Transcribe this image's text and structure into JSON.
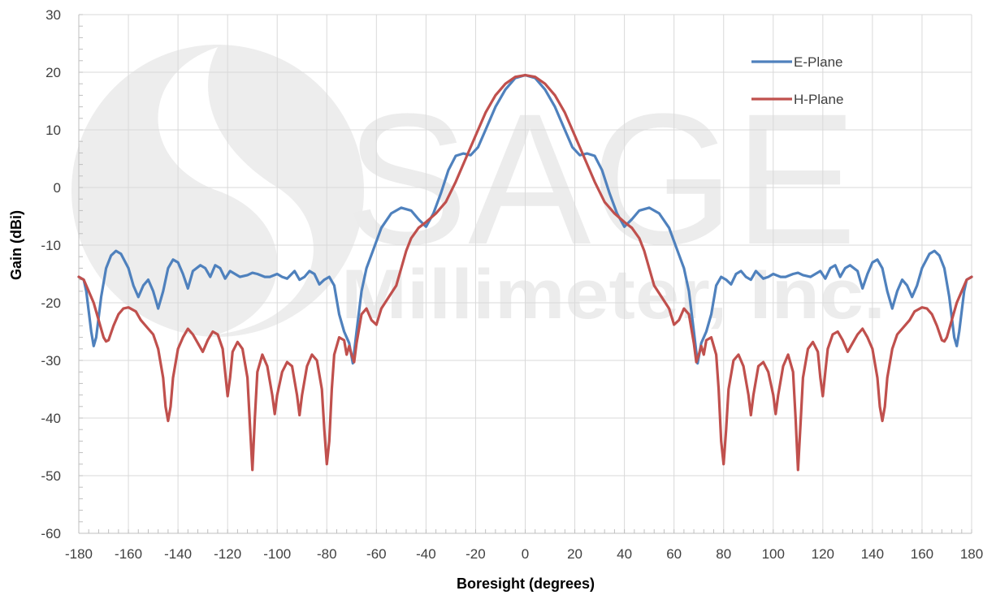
{
  "chart_data": {
    "type": "line",
    "title": "",
    "xlabel": "Boresight (degrees)",
    "ylabel": "Gain (dBi)",
    "xlim": [
      -180,
      180
    ],
    "ylim": [
      -60,
      30
    ],
    "xticks": [
      -180,
      -160,
      -140,
      -120,
      -100,
      -80,
      -60,
      -40,
      -20,
      0,
      20,
      40,
      60,
      80,
      100,
      120,
      140,
      160,
      180
    ],
    "yticks": [
      -60,
      -50,
      -40,
      -30,
      -20,
      -10,
      0,
      10,
      20,
      30
    ],
    "grid": true,
    "legend_position": "top-right",
    "watermark": {
      "brand": "SAGE",
      "company": "Millimeter, Inc."
    },
    "series": [
      {
        "name": "E-Plane",
        "color": "#4f81bd",
        "points": [
          [
            0,
            19.5
          ],
          [
            4,
            19
          ],
          [
            8,
            17
          ],
          [
            12,
            14
          ],
          [
            16,
            10
          ],
          [
            19,
            7
          ],
          [
            22,
            5.6
          ],
          [
            25,
            5.9
          ],
          [
            28,
            5.5
          ],
          [
            31,
            3
          ],
          [
            34,
            -1
          ],
          [
            37,
            -4.5
          ],
          [
            40,
            -6.8
          ],
          [
            43,
            -5.5
          ],
          [
            46,
            -4
          ],
          [
            50,
            -3.5
          ],
          [
            54,
            -4.5
          ],
          [
            58,
            -7
          ],
          [
            61,
            -10.5
          ],
          [
            64,
            -14
          ],
          [
            66,
            -18
          ],
          [
            68,
            -25
          ],
          [
            69.5,
            -30.5
          ],
          [
            71,
            -27
          ],
          [
            73,
            -25
          ],
          [
            75,
            -22
          ],
          [
            77,
            -17
          ],
          [
            79,
            -15.5
          ],
          [
            81,
            -16
          ],
          [
            83,
            -16.8
          ],
          [
            85,
            -15
          ],
          [
            87,
            -14.5
          ],
          [
            89,
            -15.5
          ],
          [
            91,
            -16
          ],
          [
            93,
            -14.5
          ],
          [
            96,
            -15.8
          ],
          [
            98,
            -15.5
          ],
          [
            100,
            -15
          ],
          [
            103,
            -15.5
          ],
          [
            105,
            -15.5
          ],
          [
            108,
            -15
          ],
          [
            110,
            -14.8
          ],
          [
            112,
            -15.2
          ],
          [
            115,
            -15.5
          ],
          [
            117,
            -15
          ],
          [
            119,
            -14.5
          ],
          [
            121,
            -15.8
          ],
          [
            123,
            -14
          ],
          [
            125,
            -13.5
          ],
          [
            127,
            -15.5
          ],
          [
            129,
            -14
          ],
          [
            131,
            -13.5
          ],
          [
            134,
            -14.5
          ],
          [
            136,
            -17.5
          ],
          [
            138,
            -15
          ],
          [
            140,
            -13
          ],
          [
            142,
            -12.5
          ],
          [
            144,
            -14
          ],
          [
            146,
            -18
          ],
          [
            148,
            -21
          ],
          [
            150,
            -18
          ],
          [
            152,
            -16
          ],
          [
            154,
            -17
          ],
          [
            156,
            -19
          ],
          [
            158,
            -17
          ],
          [
            160,
            -14
          ],
          [
            163,
            -11.5
          ],
          [
            165,
            -11
          ],
          [
            167,
            -11.8
          ],
          [
            169,
            -14
          ],
          [
            171,
            -19
          ],
          [
            173,
            -26
          ],
          [
            174,
            -27.5
          ],
          [
            175,
            -25
          ],
          [
            177,
            -18
          ],
          [
            178,
            -16
          ],
          [
            180,
            -15.5
          ]
        ]
      },
      {
        "name": "H-Plane",
        "color": "#c0504d",
        "points": [
          [
            0,
            19.5
          ],
          [
            4,
            19.2
          ],
          [
            8,
            18
          ],
          [
            12,
            16
          ],
          [
            16,
            13
          ],
          [
            20,
            9
          ],
          [
            24,
            5
          ],
          [
            28,
            1
          ],
          [
            32,
            -2.5
          ],
          [
            36,
            -4.5
          ],
          [
            40,
            -6
          ],
          [
            43,
            -7
          ],
          [
            46,
            -8.8
          ],
          [
            48,
            -11
          ],
          [
            50,
            -14
          ],
          [
            52,
            -17
          ],
          [
            55,
            -19
          ],
          [
            58,
            -21
          ],
          [
            60,
            -23.8
          ],
          [
            62,
            -23
          ],
          [
            64,
            -21
          ],
          [
            66,
            -22
          ],
          [
            68,
            -27
          ],
          [
            69,
            -30.3
          ],
          [
            70,
            -29
          ],
          [
            71,
            -27.5
          ],
          [
            72,
            -29
          ],
          [
            73,
            -26.5
          ],
          [
            75,
            -26
          ],
          [
            77,
            -29
          ],
          [
            78,
            -35
          ],
          [
            79,
            -44
          ],
          [
            80,
            -48
          ],
          [
            81,
            -42
          ],
          [
            82,
            -35
          ],
          [
            84,
            -30
          ],
          [
            86,
            -29
          ],
          [
            88,
            -31
          ],
          [
            90,
            -36
          ],
          [
            91,
            -39.5
          ],
          [
            92,
            -36
          ],
          [
            94,
            -31
          ],
          [
            96,
            -30.3
          ],
          [
            98,
            -32
          ],
          [
            100,
            -36
          ],
          [
            101,
            -39.3
          ],
          [
            102,
            -36
          ],
          [
            104,
            -31
          ],
          [
            106,
            -29
          ],
          [
            108,
            -32
          ],
          [
            109,
            -40
          ],
          [
            110,
            -49
          ],
          [
            111,
            -41
          ],
          [
            112,
            -33
          ],
          [
            114,
            -28
          ],
          [
            116,
            -26.8
          ],
          [
            118,
            -28.5
          ],
          [
            119,
            -33
          ],
          [
            120,
            -36.2
          ],
          [
            121,
            -32
          ],
          [
            122,
            -28
          ],
          [
            124,
            -25.5
          ],
          [
            126,
            -25
          ],
          [
            128,
            -26.5
          ],
          [
            130,
            -28.5
          ],
          [
            132,
            -27
          ],
          [
            134,
            -25.5
          ],
          [
            136,
            -24.5
          ],
          [
            138,
            -26
          ],
          [
            140,
            -28
          ],
          [
            142,
            -33
          ],
          [
            143,
            -38
          ],
          [
            144,
            -40.5
          ],
          [
            145,
            -38
          ],
          [
            146,
            -33
          ],
          [
            148,
            -28
          ],
          [
            150,
            -25.5
          ],
          [
            152,
            -24.5
          ],
          [
            155,
            -23
          ],
          [
            157,
            -21.5
          ],
          [
            160,
            -20.8
          ],
          [
            162,
            -21
          ],
          [
            164,
            -22
          ],
          [
            166,
            -24
          ],
          [
            168,
            -26.5
          ],
          [
            169,
            -26.7
          ],
          [
            170,
            -26
          ],
          [
            172,
            -23
          ],
          [
            174,
            -20
          ],
          [
            176,
            -18
          ],
          [
            178,
            -16
          ],
          [
            180,
            -15.5
          ]
        ]
      }
    ]
  }
}
